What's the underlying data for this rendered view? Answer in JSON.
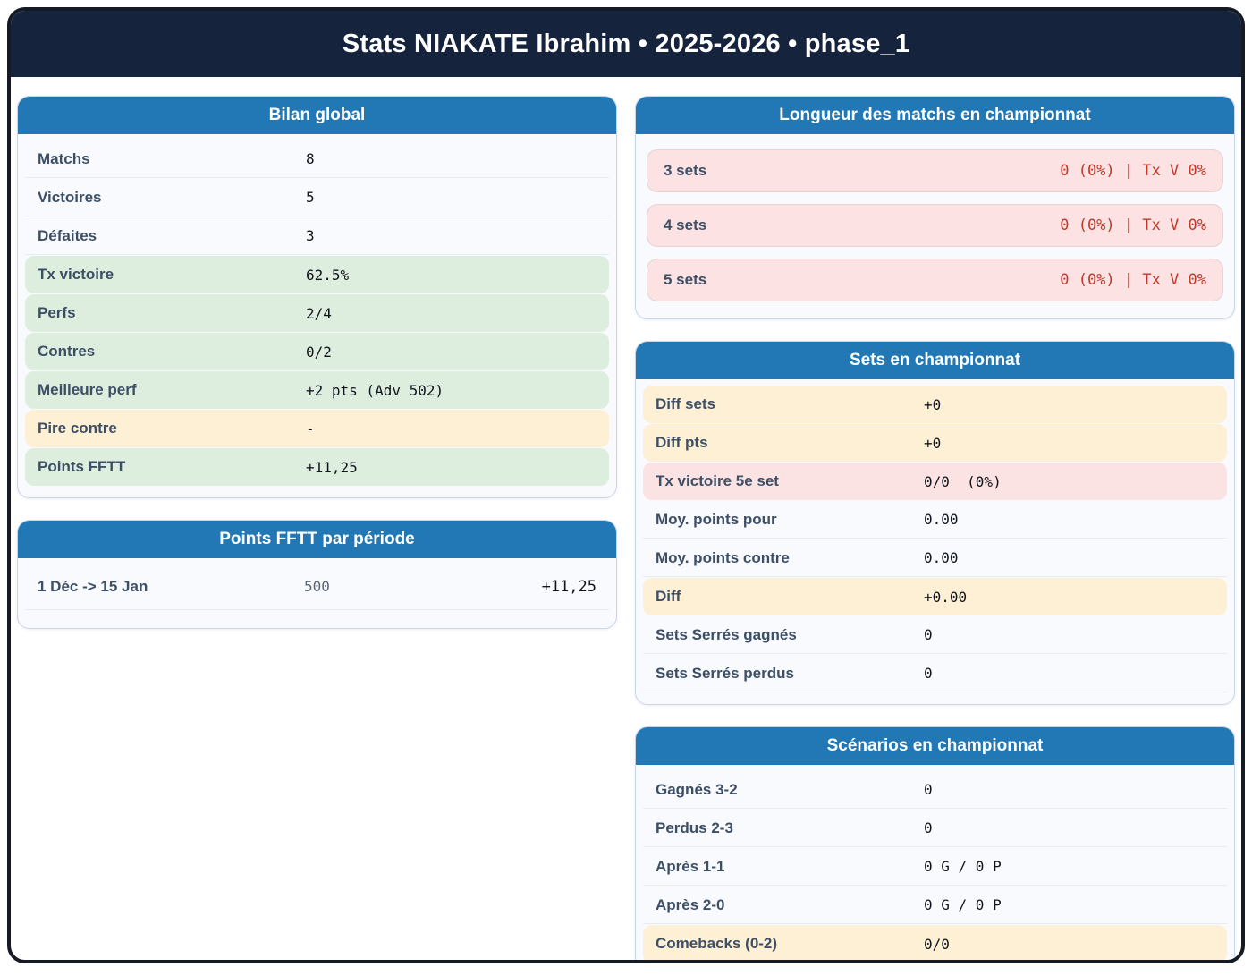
{
  "title": "Stats NIAKATE Ibrahim • 2025-2026 • phase_1",
  "colors": {
    "header_bg": "#16233d",
    "card_header_bg": "#2178b5",
    "green_row": "#ddeede",
    "cream_row": "#fdf0d4",
    "pink_row": "#fce2e2",
    "red_text": "#c0392b",
    "label_text": "#3d4f66"
  },
  "cards": {
    "bilan": {
      "title": "Bilan global",
      "rows": [
        {
          "label": "Matchs",
          "value": "8",
          "variant": "plain"
        },
        {
          "label": "Victoires",
          "value": "5",
          "variant": "plain"
        },
        {
          "label": "Défaites",
          "value": "3",
          "variant": "plain"
        },
        {
          "label": "Tx victoire",
          "value": "62.5%",
          "variant": "green"
        },
        {
          "label": "Perfs",
          "value": "2/4",
          "variant": "green"
        },
        {
          "label": "Contres",
          "value": "0/2",
          "variant": "green"
        },
        {
          "label": "Meilleure perf",
          "value": "+2 pts (Adv 502)",
          "variant": "green"
        },
        {
          "label": "Pire contre",
          "value": "-",
          "variant": "cream"
        },
        {
          "label": "Points FFTT",
          "value": "+11,25",
          "variant": "green"
        }
      ]
    },
    "periods": {
      "title": "Points FFTT par période",
      "rows": [
        {
          "label": "1 Déc -> 15 Jan",
          "mid": "500",
          "value": "+11,25"
        }
      ]
    },
    "longueur": {
      "title": "Longueur des matchs en championnat",
      "rows": [
        {
          "label": "3 sets",
          "value": "0 (0%) | Tx V 0%"
        },
        {
          "label": "4 sets",
          "value": "0 (0%) | Tx V 0%"
        },
        {
          "label": "5 sets",
          "value": "0 (0%) | Tx V 0%"
        }
      ]
    },
    "sets": {
      "title": "Sets en championnat",
      "rows": [
        {
          "label": "Diff sets",
          "value": "+0",
          "variant": "cream"
        },
        {
          "label": "Diff pts",
          "value": "+0",
          "variant": "cream"
        },
        {
          "label": "Tx victoire 5e set",
          "value": "0/0  (0%)",
          "variant": "pink"
        },
        {
          "label": "Moy. points pour",
          "value": "0.00",
          "variant": "plain"
        },
        {
          "label": "Moy. points contre",
          "value": "0.00",
          "variant": "plain"
        },
        {
          "label": "Diff",
          "value": "+0.00",
          "variant": "cream"
        },
        {
          "label": "Sets Serrés gagnés",
          "value": "0",
          "variant": "plain"
        },
        {
          "label": "Sets Serrés perdus",
          "value": "0",
          "variant": "plain"
        }
      ]
    },
    "scenarios": {
      "title": "Scénarios en championnat",
      "rows": [
        {
          "label": "Gagnés 3-2",
          "value": "0",
          "variant": "plain"
        },
        {
          "label": "Perdus 2-3",
          "value": "0",
          "variant": "plain"
        },
        {
          "label": "Après 1-1",
          "value": "0 G / 0 P",
          "variant": "plain"
        },
        {
          "label": "Après 2-0",
          "value": "0 G / 0 P",
          "variant": "plain"
        },
        {
          "label": "Comebacks (0-2)",
          "value": "0/0",
          "variant": "cream"
        }
      ]
    }
  }
}
